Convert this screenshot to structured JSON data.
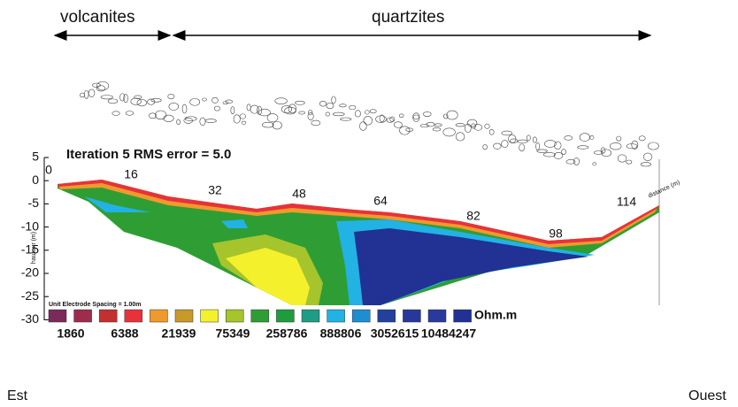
{
  "header": {
    "left_label": "volcanites",
    "right_label": "quartzites"
  },
  "section": {
    "title": "Iteration 5 RMS error = 5.0",
    "y_axis_label": "hauteur (m)",
    "y_ticks": [
      "5",
      "0",
      "-5",
      "-10",
      "-15",
      "-20",
      "-25",
      "-30"
    ],
    "distance_labels": [
      "0",
      "16",
      "32",
      "48",
      "64",
      "82",
      "98",
      "114"
    ],
    "distance_axis_label": "distance (m)"
  },
  "legend": {
    "caption": "Unit Electrode Spacing = 1.00m",
    "unit": "Ohm.m",
    "values": [
      "1860",
      "6388",
      "21939",
      "75349",
      "258786",
      "888806",
      "3052615",
      "10484247"
    ],
    "swatch_colors": [
      "#7b2a5c",
      "#9e2c4c",
      "#c2302f",
      "#e8323a",
      "#ef9a2c",
      "#c89a2a",
      "#f4f02c",
      "#a6c42c",
      "#2e9e34",
      "#1e9c3e",
      "#1f9c84",
      "#22b2e4",
      "#1e8ed0",
      "#23409e",
      "#27389c",
      "#2a399e",
      "#213194"
    ]
  },
  "footer": {
    "left": "Est",
    "right": "Ouest"
  }
}
